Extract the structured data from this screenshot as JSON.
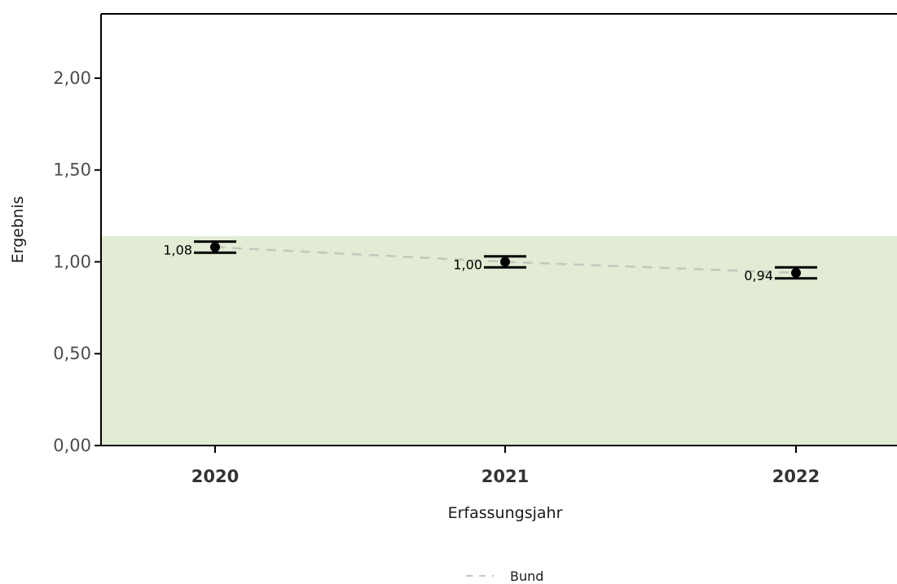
{
  "chart_data": {
    "type": "scatter",
    "xlabel": "Erfassungsjahr",
    "ylabel": "Ergebnis",
    "categories": [
      "2020",
      "2021",
      "2022"
    ],
    "ylim": [
      0,
      2.35
    ],
    "yticks": [
      0,
      0.5,
      1,
      1.5,
      2
    ],
    "ytick_labels": [
      "0,00",
      "0,50",
      "1,00",
      "1,50",
      "2,00"
    ],
    "reference_band": {
      "from": 0,
      "to": 1.14,
      "color": "#e2ebd3"
    },
    "points": [
      {
        "x": "2020",
        "value": 1.08,
        "lower": 1.05,
        "upper": 1.11,
        "label": "1,08"
      },
      {
        "x": "2021",
        "value": 1.0,
        "lower": 0.97,
        "upper": 1.03,
        "label": "1,00"
      },
      {
        "x": "2022",
        "value": 0.94,
        "lower": 0.91,
        "upper": 0.97,
        "label": "0,94"
      }
    ],
    "series": [
      {
        "name": "Bund",
        "style": "dashed",
        "color": "#c2c8bc",
        "values": [
          1.08,
          1.0,
          0.94
        ]
      }
    ],
    "legend": {
      "position": "bottom",
      "entries": [
        "Bund"
      ]
    },
    "grid": false
  }
}
